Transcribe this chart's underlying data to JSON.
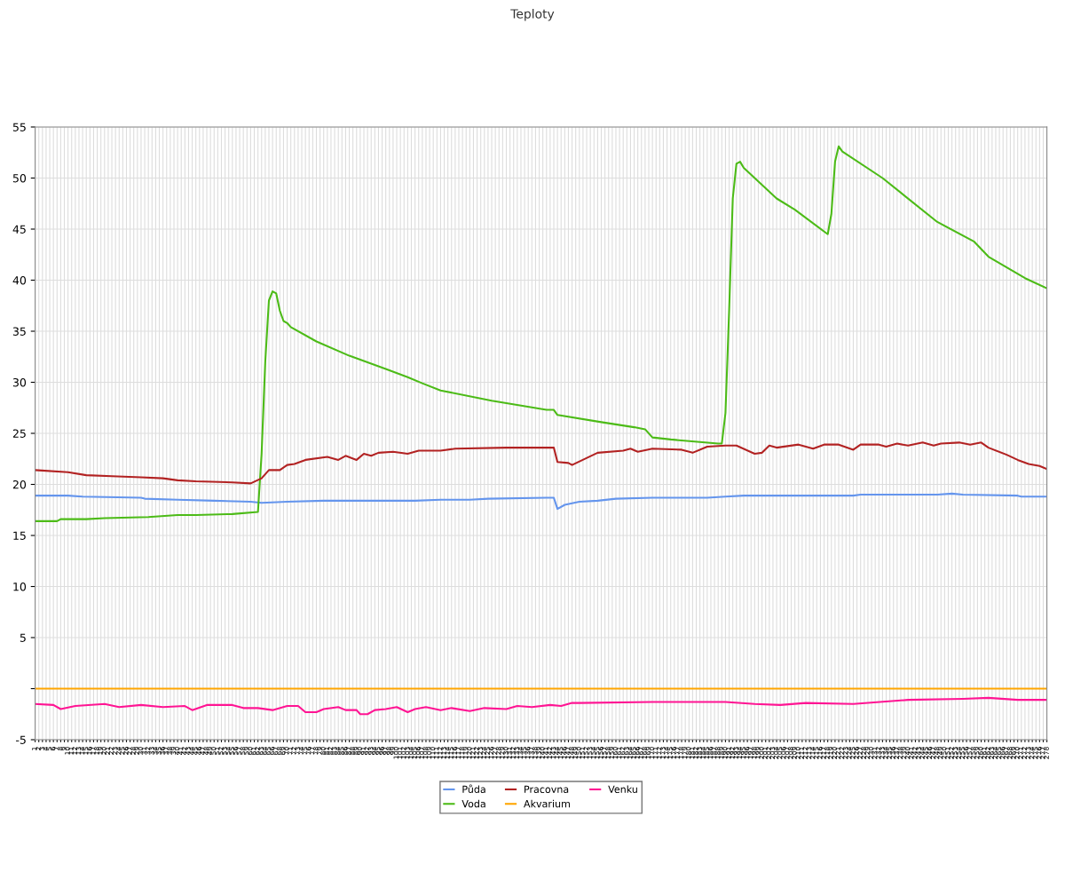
{
  "chart_data": {
    "type": "line",
    "title": "Teploty",
    "legend": "bottom",
    "grid": true,
    "marker": "none",
    "line_style": "solid",
    "xlim": [
      1,
      278
    ],
    "ylim": [
      -5,
      55
    ],
    "yticks": [
      -5,
      {
        "value": 0,
        "label": null
      },
      5,
      10,
      15,
      20,
      25,
      30,
      35,
      40,
      45,
      50,
      55
    ],
    "xticks": [
      1,
      2,
      3,
      4,
      5,
      6,
      7,
      8,
      9,
      10,
      11,
      12,
      13,
      14,
      15,
      16,
      17,
      18,
      19,
      20,
      21,
      22,
      23,
      24,
      25,
      26,
      27,
      28,
      29,
      30,
      31,
      32,
      33,
      34,
      35,
      36,
      37,
      38,
      39,
      40,
      41,
      42,
      43,
      44,
      45,
      46,
      47,
      48,
      49,
      50,
      51,
      52,
      53,
      54,
      55,
      56,
      57,
      58,
      59,
      60,
      61,
      62,
      63,
      64,
      65,
      66,
      67,
      68,
      69,
      70,
      71,
      72,
      73,
      74,
      75,
      76,
      77,
      78,
      79,
      80,
      81,
      82,
      83,
      84,
      85,
      86,
      87,
      88,
      89,
      90,
      91,
      92,
      93,
      94,
      95,
      96,
      97,
      98,
      99,
      100,
      101,
      102,
      103,
      104,
      105,
      106,
      107,
      108,
      109,
      110,
      111,
      112,
      113,
      114,
      115,
      116,
      117,
      118,
      119,
      120,
      121,
      122,
      123,
      124,
      125,
      126,
      127,
      128,
      129,
      130,
      131,
      132,
      133,
      134,
      135,
      136,
      137,
      138,
      139,
      140,
      141,
      142,
      143,
      144,
      145,
      146,
      147,
      148,
      149,
      150,
      151,
      152,
      153,
      154,
      155,
      156,
      157,
      158,
      159,
      160,
      161,
      162,
      163,
      164,
      165,
      166,
      167,
      168,
      169,
      170,
      171,
      172,
      173,
      174,
      175,
      176,
      177,
      178,
      179,
      180,
      181,
      182,
      183,
      184,
      185,
      186,
      187,
      188,
      189,
      190,
      191,
      192,
      193,
      194,
      195,
      196,
      197,
      198,
      199,
      200,
      201,
      202,
      203,
      204,
      205,
      206,
      207,
      208,
      209,
      210,
      211,
      212,
      213,
      214,
      215,
      216,
      217,
      218,
      219,
      220,
      221,
      222,
      223,
      224,
      225,
      226,
      227,
      228,
      229,
      230,
      231,
      232,
      233,
      234,
      235,
      236,
      237,
      238,
      239,
      240,
      241,
      242,
      243,
      244,
      245,
      246,
      247,
      248,
      249,
      250,
      251,
      252,
      253,
      254,
      255,
      256,
      257,
      258,
      259,
      260,
      261,
      262,
      263,
      264,
      265,
      266,
      267,
      268,
      269,
      270,
      271,
      272,
      273,
      274,
      275,
      276,
      277,
      278
    ],
    "series": [
      {
        "name": "Půda",
        "color": "#6495ed",
        "x": [
          1,
          10,
          14,
          30,
          31,
          40,
          50,
          60,
          63,
          70,
          80,
          105,
          112,
          120,
          125,
          141,
          143,
          144,
          146,
          150,
          155,
          160,
          170,
          185,
          190,
          195,
          225,
          227,
          235,
          248,
          252,
          255,
          270,
          271,
          278
        ],
        "values": [
          18.9,
          18.9,
          18.8,
          18.7,
          18.6,
          18.5,
          18.4,
          18.3,
          18.2,
          18.3,
          18.4,
          18.4,
          18.5,
          18.5,
          18.6,
          18.7,
          18.7,
          17.6,
          18.0,
          18.3,
          18.4,
          18.6,
          18.7,
          18.7,
          18.8,
          18.9,
          18.9,
          19.0,
          19.0,
          19.0,
          19.1,
          19.0,
          18.9,
          18.8,
          18.8
        ]
      },
      {
        "name": "Voda",
        "color": "#4cbb17",
        "x": [
          1,
          7,
          8,
          15,
          20,
          32,
          40,
          45,
          55,
          62,
          63,
          64,
          65,
          66,
          67,
          68,
          69,
          70,
          71,
          78,
          87,
          97,
          103,
          107,
          112,
          126,
          141,
          143,
          144,
          156,
          165,
          168,
          170,
          175,
          188,
          189,
          190,
          191,
          192,
          193,
          194,
          195,
          204,
          209,
          218,
          219,
          220,
          221,
          222,
          233,
          248,
          258,
          262,
          272,
          278
        ],
        "values": [
          16.4,
          16.4,
          16.6,
          16.6,
          16.7,
          16.8,
          17.0,
          17.0,
          17.1,
          17.3,
          23.0,
          32.0,
          38.0,
          38.9,
          38.7,
          37.0,
          36.0,
          35.8,
          35.4,
          34.0,
          32.6,
          31.3,
          30.5,
          29.9,
          29.2,
          28.2,
          27.3,
          27.3,
          26.8,
          26.1,
          25.6,
          25.4,
          24.6,
          24.4,
          24.0,
          24.0,
          27.0,
          37.0,
          48.0,
          51.4,
          51.6,
          51.0,
          48.0,
          46.9,
          44.5,
          46.5,
          51.6,
          53.1,
          52.6,
          50.0,
          45.7,
          43.8,
          42.3,
          40.2,
          39.2
        ]
      },
      {
        "name": "Pracovna",
        "color": "#b22222",
        "x": [
          1,
          10,
          15,
          22,
          30,
          36,
          40,
          45,
          55,
          60,
          63,
          65,
          68,
          70,
          72,
          75,
          81,
          84,
          86,
          89,
          91,
          93,
          95,
          99,
          103,
          106,
          112,
          116,
          130,
          143,
          144,
          147,
          148,
          155,
          162,
          164,
          166,
          170,
          178,
          181,
          185,
          190,
          193,
          198,
          200,
          202,
          204,
          210,
          214,
          217,
          221,
          225,
          227,
          232,
          234,
          237,
          240,
          244,
          247,
          249,
          254,
          257,
          260,
          262,
          267,
          270,
          273,
          276,
          278
        ],
        "values": [
          21.4,
          21.2,
          20.9,
          20.8,
          20.7,
          20.6,
          20.4,
          20.3,
          20.2,
          20.1,
          20.6,
          21.4,
          21.4,
          21.9,
          22.0,
          22.4,
          22.7,
          22.4,
          22.8,
          22.4,
          23.0,
          22.8,
          23.1,
          23.2,
          23.0,
          23.3,
          23.3,
          23.5,
          23.6,
          23.6,
          22.2,
          22.1,
          21.9,
          23.1,
          23.3,
          23.5,
          23.2,
          23.5,
          23.4,
          23.1,
          23.7,
          23.8,
          23.8,
          23.0,
          23.1,
          23.8,
          23.6,
          23.9,
          23.5,
          23.9,
          23.9,
          23.4,
          23.9,
          23.9,
          23.7,
          24.0,
          23.8,
          24.1,
          23.8,
          24.0,
          24.1,
          23.9,
          24.1,
          23.6,
          22.9,
          22.4,
          22.0,
          21.8,
          21.5
        ]
      },
      {
        "name": "Akvarium",
        "color": "#ffa500",
        "x": [
          1,
          278
        ],
        "values": [
          0,
          0
        ]
      },
      {
        "name": "Venku",
        "color": "#ff1493",
        "x": [
          1,
          6,
          8,
          12,
          20,
          24,
          30,
          36,
          42,
          44,
          48,
          55,
          58,
          62,
          66,
          70,
          73,
          75,
          78,
          80,
          84,
          86,
          89,
          90,
          92,
          94,
          97,
          100,
          103,
          105,
          108,
          112,
          115,
          120,
          124,
          130,
          133,
          137,
          142,
          145,
          148,
          150,
          170,
          190,
          198,
          205,
          212,
          225,
          240,
          255,
          262,
          270,
          278
        ],
        "values": [
          -1.5,
          -1.6,
          -2.0,
          -1.7,
          -1.5,
          -1.8,
          -1.6,
          -1.8,
          -1.7,
          -2.1,
          -1.6,
          -1.6,
          -1.9,
          -1.9,
          -2.1,
          -1.7,
          -1.7,
          -2.3,
          -2.3,
          -2.0,
          -1.8,
          -2.1,
          -2.1,
          -2.5,
          -2.5,
          -2.1,
          -2.0,
          -1.8,
          -2.3,
          -2.0,
          -1.8,
          -2.1,
          -1.9,
          -2.2,
          -1.9,
          -2.0,
          -1.7,
          -1.8,
          -1.6,
          -1.7,
          -1.4,
          -1.4,
          -1.3,
          -1.3,
          -1.5,
          -1.6,
          -1.4,
          -1.5,
          -1.1,
          -1.0,
          -0.9,
          -1.1,
          -1.1
        ]
      }
    ]
  }
}
